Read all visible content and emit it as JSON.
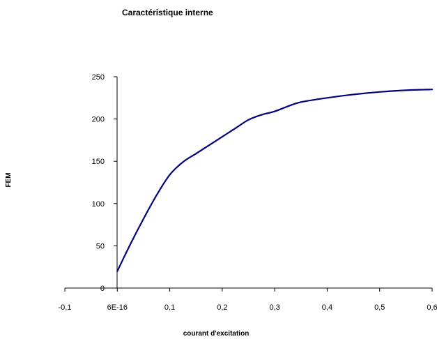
{
  "chart_data": {
    "type": "line",
    "title": "Caractéristique interne",
    "xlabel": "courant d'excitation",
    "ylabel": "FEM",
    "xlim": [
      -0.1,
      0.6
    ],
    "ylim": [
      0,
      250
    ],
    "x_tick_labels": [
      "-0,1",
      "6E-16",
      "0,1",
      "0,2",
      "0,3",
      "0,4",
      "0,5",
      "0,6"
    ],
    "y_tick_labels": [
      "0",
      "50",
      "100",
      "150",
      "200",
      "250"
    ],
    "grid": false,
    "legend": "none",
    "series": [
      {
        "color": "#000080",
        "x": [
          0,
          0.025,
          0.05,
          0.075,
          0.1,
          0.125,
          0.15,
          0.175,
          0.2,
          0.225,
          0.25,
          0.275,
          0.3,
          0.325,
          0.35,
          0.4,
          0.45,
          0.5,
          0.55,
          0.6
        ],
        "y": [
          20,
          52,
          82,
          110,
          134,
          149,
          159,
          169,
          179,
          189,
          199,
          205,
          209,
          215,
          220,
          225,
          229,
          232,
          234,
          235
        ]
      }
    ]
  }
}
